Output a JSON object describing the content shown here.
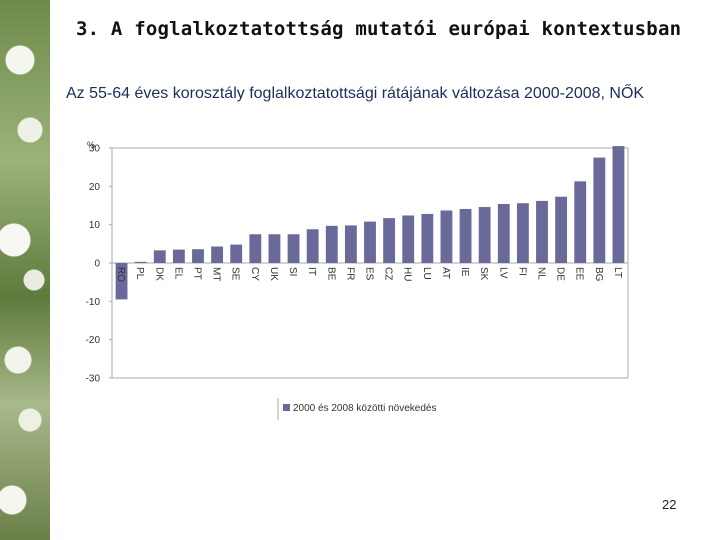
{
  "title": "3. A foglalkoztatottság mutatói európai kontextusban",
  "subtitle": "Az 55-64 éves korosztály foglalkoztatottsági rátájának változása 2000-2008, NŐK",
  "page_number": "22",
  "colors": {
    "bar": "#6a6a9a",
    "axis": "#aaaaaa",
    "text": "#333333"
  },
  "chart_data": {
    "type": "bar",
    "title": "",
    "xlabel": "",
    "ylabel": "%",
    "ylim": [
      -30,
      30
    ],
    "yticks": [
      -30,
      -20,
      -10,
      0,
      10,
      20,
      30
    ],
    "categories": [
      "RO",
      "PL",
      "DK",
      "EL",
      "PT",
      "MT",
      "SE",
      "CY",
      "UK",
      "SI",
      "IT",
      "BE",
      "FR",
      "ES",
      "CZ",
      "HU",
      "LU",
      "AT",
      "IE",
      "SK",
      "LV",
      "FI",
      "NL",
      "DE",
      "EE",
      "BG",
      "LT"
    ],
    "series": [
      {
        "name": "2000 és 2008 közötti növekedés",
        "values": [
          -9.5,
          0.3,
          3.3,
          3.5,
          3.6,
          4.3,
          4.8,
          7.5,
          7.5,
          7.5,
          8.8,
          9.7,
          9.8,
          10.8,
          11.7,
          12.4,
          12.8,
          13.7,
          14.1,
          14.6,
          15.4,
          15.6,
          16.2,
          17.3,
          21.3,
          27.5,
          30.5
        ]
      }
    ],
    "legend": {
      "position": "bottom"
    }
  }
}
